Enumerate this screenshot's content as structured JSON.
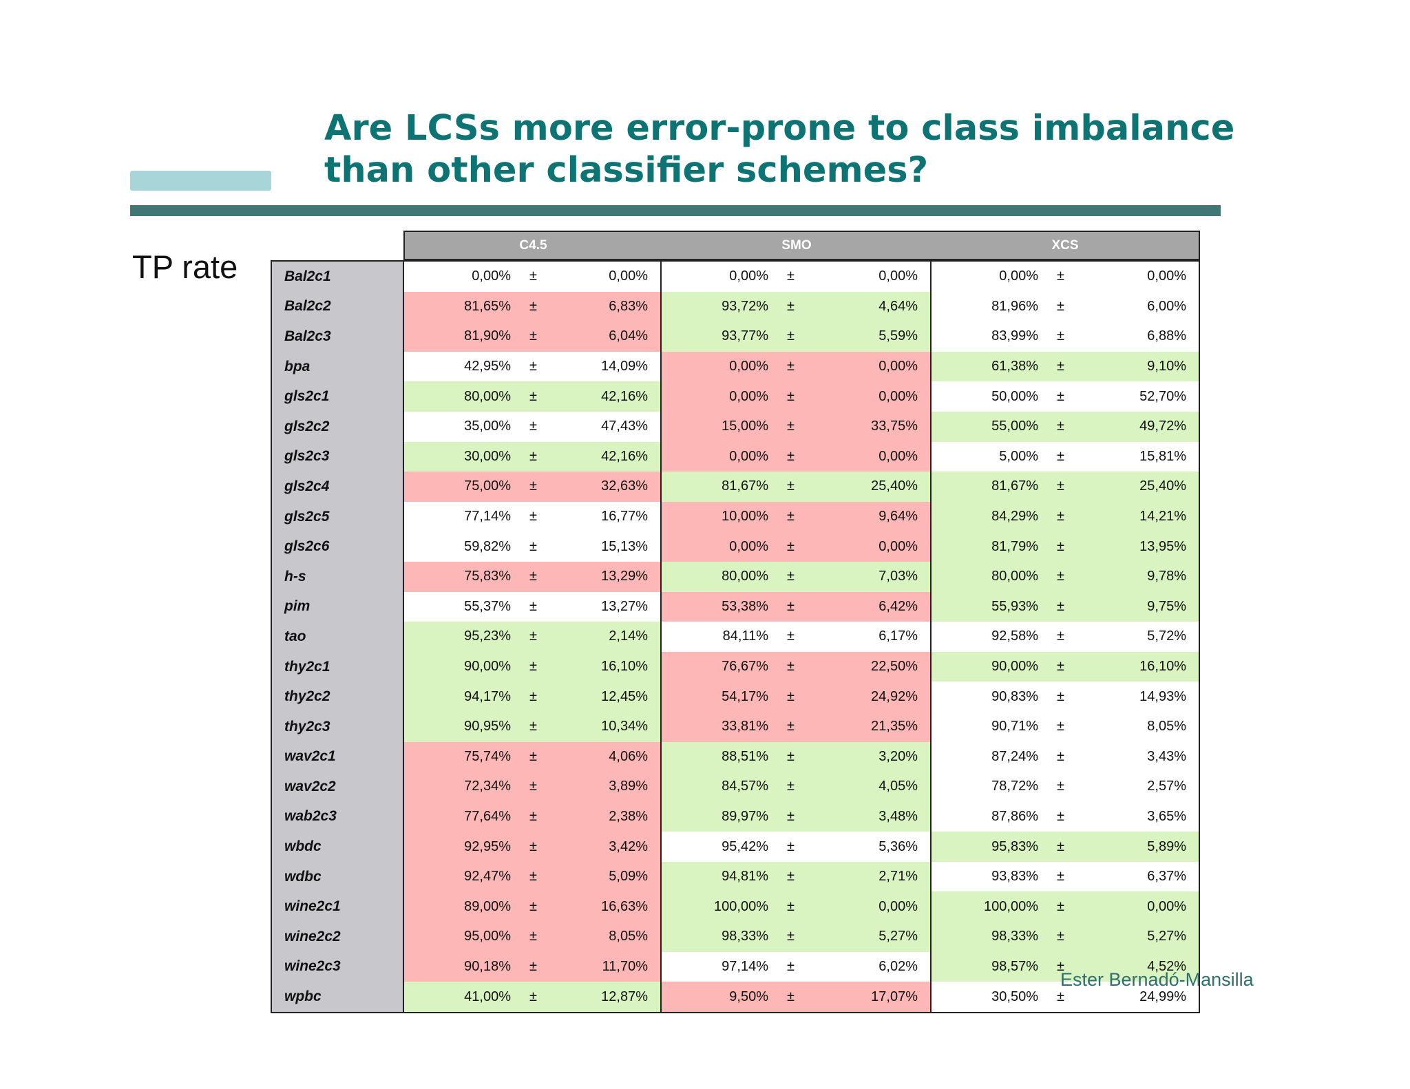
{
  "title": {
    "line1": "Are LCSs more error-prone to class imbalance",
    "line2": "than other classifier schemes?"
  },
  "side_label": "TP rate",
  "footer": "Ester Bernadó-Mansilla",
  "table": {
    "groups": [
      "C4.5",
      "SMO",
      "XCS"
    ],
    "pm": "±",
    "colors": {
      "red": "#fdb7b6",
      "green": "#d9f4c0",
      "white": "#ffffff"
    },
    "rows": [
      {
        "name": "Bal2c1",
        "cells": [
          [
            "0,00%",
            "0,00%",
            "white"
          ],
          [
            "0,00%",
            "0,00%",
            "white"
          ],
          [
            "0,00%",
            "0,00%",
            "white"
          ]
        ]
      },
      {
        "name": "Bal2c2",
        "cells": [
          [
            "81,65%",
            "6,83%",
            "red"
          ],
          [
            "93,72%",
            "4,64%",
            "green"
          ],
          [
            "81,96%",
            "6,00%",
            "white"
          ]
        ]
      },
      {
        "name": "Bal2c3",
        "cells": [
          [
            "81,90%",
            "6,04%",
            "red"
          ],
          [
            "93,77%",
            "5,59%",
            "green"
          ],
          [
            "83,99%",
            "6,88%",
            "white"
          ]
        ]
      },
      {
        "name": "bpa",
        "cells": [
          [
            "42,95%",
            "14,09%",
            "white"
          ],
          [
            "0,00%",
            "0,00%",
            "red"
          ],
          [
            "61,38%",
            "9,10%",
            "green"
          ]
        ]
      },
      {
        "name": "gls2c1",
        "cells": [
          [
            "80,00%",
            "42,16%",
            "green"
          ],
          [
            "0,00%",
            "0,00%",
            "red"
          ],
          [
            "50,00%",
            "52,70%",
            "white"
          ]
        ]
      },
      {
        "name": "gls2c2",
        "cells": [
          [
            "35,00%",
            "47,43%",
            "white"
          ],
          [
            "15,00%",
            "33,75%",
            "red"
          ],
          [
            "55,00%",
            "49,72%",
            "green"
          ]
        ]
      },
      {
        "name": "gls2c3",
        "cells": [
          [
            "30,00%",
            "42,16%",
            "green"
          ],
          [
            "0,00%",
            "0,00%",
            "red"
          ],
          [
            "5,00%",
            "15,81%",
            "white"
          ]
        ]
      },
      {
        "name": "gls2c4",
        "cells": [
          [
            "75,00%",
            "32,63%",
            "red"
          ],
          [
            "81,67%",
            "25,40%",
            "green"
          ],
          [
            "81,67%",
            "25,40%",
            "green"
          ]
        ]
      },
      {
        "name": "gls2c5",
        "cells": [
          [
            "77,14%",
            "16,77%",
            "white"
          ],
          [
            "10,00%",
            "9,64%",
            "red"
          ],
          [
            "84,29%",
            "14,21%",
            "green"
          ]
        ]
      },
      {
        "name": "gls2c6",
        "cells": [
          [
            "59,82%",
            "15,13%",
            "white"
          ],
          [
            "0,00%",
            "0,00%",
            "red"
          ],
          [
            "81,79%",
            "13,95%",
            "green"
          ]
        ]
      },
      {
        "name": "h-s",
        "cells": [
          [
            "75,83%",
            "13,29%",
            "red"
          ],
          [
            "80,00%",
            "7,03%",
            "green"
          ],
          [
            "80,00%",
            "9,78%",
            "green"
          ]
        ]
      },
      {
        "name": "pim",
        "cells": [
          [
            "55,37%",
            "13,27%",
            "white"
          ],
          [
            "53,38%",
            "6,42%",
            "red"
          ],
          [
            "55,93%",
            "9,75%",
            "green"
          ]
        ]
      },
      {
        "name": "tao",
        "cells": [
          [
            "95,23%",
            "2,14%",
            "green"
          ],
          [
            "84,11%",
            "6,17%",
            "white"
          ],
          [
            "92,58%",
            "5,72%",
            "white"
          ]
        ]
      },
      {
        "name": "thy2c1",
        "cells": [
          [
            "90,00%",
            "16,10%",
            "green"
          ],
          [
            "76,67%",
            "22,50%",
            "red"
          ],
          [
            "90,00%",
            "16,10%",
            "green"
          ]
        ]
      },
      {
        "name": "thy2c2",
        "cells": [
          [
            "94,17%",
            "12,45%",
            "green"
          ],
          [
            "54,17%",
            "24,92%",
            "red"
          ],
          [
            "90,83%",
            "14,93%",
            "white"
          ]
        ]
      },
      {
        "name": "thy2c3",
        "cells": [
          [
            "90,95%",
            "10,34%",
            "green"
          ],
          [
            "33,81%",
            "21,35%",
            "red"
          ],
          [
            "90,71%",
            "8,05%",
            "white"
          ]
        ]
      },
      {
        "name": "wav2c1",
        "cells": [
          [
            "75,74%",
            "4,06%",
            "red"
          ],
          [
            "88,51%",
            "3,20%",
            "green"
          ],
          [
            "87,24%",
            "3,43%",
            "white"
          ]
        ]
      },
      {
        "name": "wav2c2",
        "cells": [
          [
            "72,34%",
            "3,89%",
            "red"
          ],
          [
            "84,57%",
            "4,05%",
            "green"
          ],
          [
            "78,72%",
            "2,57%",
            "white"
          ]
        ]
      },
      {
        "name": "wab2c3",
        "cells": [
          [
            "77,64%",
            "2,38%",
            "red"
          ],
          [
            "89,97%",
            "3,48%",
            "green"
          ],
          [
            "87,86%",
            "3,65%",
            "white"
          ]
        ]
      },
      {
        "name": "wbdc",
        "cells": [
          [
            "92,95%",
            "3,42%",
            "red"
          ],
          [
            "95,42%",
            "5,36%",
            "white"
          ],
          [
            "95,83%",
            "5,89%",
            "green"
          ]
        ]
      },
      {
        "name": "wdbc",
        "cells": [
          [
            "92,47%",
            "5,09%",
            "red"
          ],
          [
            "94,81%",
            "2,71%",
            "green"
          ],
          [
            "93,83%",
            "6,37%",
            "white"
          ]
        ]
      },
      {
        "name": "wine2c1",
        "cells": [
          [
            "89,00%",
            "16,63%",
            "red"
          ],
          [
            "100,00%",
            "0,00%",
            "green"
          ],
          [
            "100,00%",
            "0,00%",
            "green"
          ]
        ]
      },
      {
        "name": "wine2c2",
        "cells": [
          [
            "95,00%",
            "8,05%",
            "red"
          ],
          [
            "98,33%",
            "5,27%",
            "green"
          ],
          [
            "98,33%",
            "5,27%",
            "green"
          ]
        ]
      },
      {
        "name": "wine2c3",
        "cells": [
          [
            "90,18%",
            "11,70%",
            "red"
          ],
          [
            "97,14%",
            "6,02%",
            "white"
          ],
          [
            "98,57%",
            "4,52%",
            "green"
          ]
        ]
      },
      {
        "name": "wpbc",
        "cells": [
          [
            "41,00%",
            "12,87%",
            "green"
          ],
          [
            "9,50%",
            "17,07%",
            "red"
          ],
          [
            "30,50%",
            "24,99%",
            "white"
          ]
        ]
      }
    ]
  }
}
